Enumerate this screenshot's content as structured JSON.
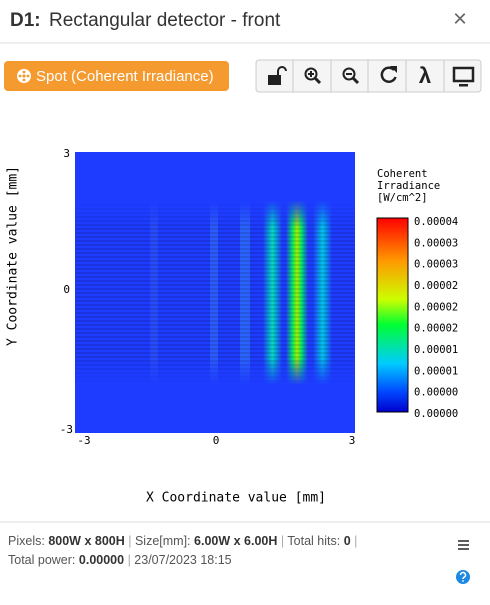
{
  "header": {
    "id": "D1:",
    "title": "Rectangular detector - front",
    "close": "×"
  },
  "spot_button": "Spot (Coherent Irradiance)",
  "toolbar": {
    "lambda": "λ"
  },
  "plot": {
    "y_label": "Y Coordinate value [mm]",
    "x_label": "X Coordinate value [mm]",
    "y_ticks": [
      "3",
      "0",
      "-3"
    ],
    "x_ticks": [
      "-3",
      "0",
      "3"
    ],
    "colorbar_title": [
      "Coherent",
      "Irradiance",
      "[W/cm^2]"
    ],
    "colorbar_labels": [
      "0.00004",
      "0.00003",
      "0.00003",
      "0.00002",
      "0.00002",
      "0.00002",
      "0.00001",
      "0.00001",
      "0.00000",
      "0.00000"
    ]
  },
  "footer": {
    "pixels_label": "Pixels:",
    "pixels": "800W x 800H",
    "size_label": "Size[mm]:",
    "size": "6.00W x 6.00H",
    "hits_label": "Total hits:",
    "hits": "0",
    "power_label": "Total power:",
    "power": "0.00000",
    "timestamp": "23/07/2023 18:15"
  }
}
